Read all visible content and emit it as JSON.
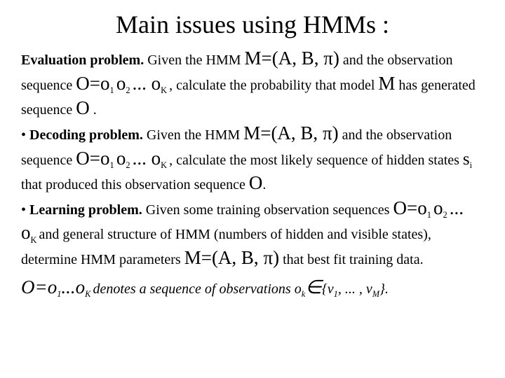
{
  "title": "Main issues using HMMs :",
  "p1_a": "Evaluation problem.",
  "p1_b": " Given the HMM  ",
  "p1_c": "M=(A, B, ",
  "p1_pi": "π",
  "p1_d": ")",
  "p1_e": "   and  the observation sequence  ",
  "p1_f": "O=o",
  "p1_s1": "1 ",
  "p1_g": "o",
  "p1_s2": "2 ",
  "p1_h": "... o",
  "p1_sK": "K ",
  "p1_i": ", calculate the probability that model ",
  "p1_M": "M",
  "p1_j": " has generated sequence  ",
  "p1_O": "O",
  "p1_k": " .",
  "p2_bullet": "• ",
  "p2_a": "Decoding problem.",
  "p2_b": " Given the HMM  ",
  "p2_c": "M=(A, B, ",
  "p2_pi": "π",
  "p2_d": ")",
  "p2_e": "   and  the observation sequence  ",
  "p2_f": "O=o",
  "p2_s1": "1 ",
  "p2_g": "o",
  "p2_s2": "2 ",
  "p2_h": "... o",
  "p2_sK": "K ",
  "p2_i": ", calculate the most likely sequence of hidden states ",
  "p2_s": "s",
  "p2_si": "i",
  "p2_j": " that produced this observation sequence ",
  "p2_O": "O",
  "p2_k": ".",
  "p3_bullet": "• ",
  "p3_a": "Learning problem.",
  "p3_b": " Given some training observation sequences ",
  "p3_c": "O=o",
  "p3_s1": "1 ",
  "p3_d": "o",
  "p3_s2": "2 ",
  "p3_e": "... o",
  "p3_sK": "K ",
  "p3_f": "  and general structure of HMM (numbers of hidden and visible states), determine HMM parameters ",
  "p3_g": "M=(A, B, ",
  "p3_pi": "π",
  "p3_h": ")",
  "p3_i": " that best fit training data.",
  "foot_a": "O=o",
  "foot_s1": "1",
  "foot_b": "...o",
  "foot_sK": "K ",
  "foot_c": "denotes a sequence of observations o",
  "foot_sk": "k",
  "foot_in": "∈",
  "foot_d": "{v",
  "foot_v1": "1",
  "foot_e": ", ... , v",
  "foot_vM": "M",
  "foot_f": "}."
}
